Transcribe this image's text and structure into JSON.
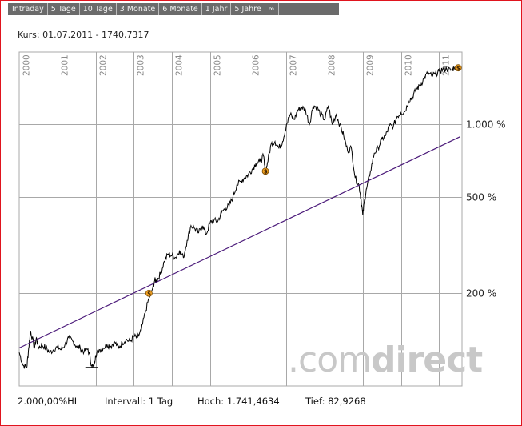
{
  "tabs": [
    "Intraday",
    "5 Tage",
    "10 Tage",
    "3 Monate",
    "6 Monate",
    "1 Jahr",
    "5 Jahre",
    "∞"
  ],
  "kurs_label": "Kurs: 01.07.2011 - 1740,7317",
  "watermark": {
    "dot": ".",
    "com": "com",
    "direct": "direct"
  },
  "footer": {
    "scale": "2.000,00%HL",
    "interval": "Intervall: 1 Tag",
    "high": "Hoch: 1.741,4634",
    "low": "Tief: 82,9268"
  },
  "colors": {
    "frame": "#e0141e",
    "tab_bg": "#6b6b6b",
    "grid": "#a8a8a8",
    "price_line": "#000000",
    "trend_line": "#4b1a7a",
    "marker": "#f0a020",
    "watermark": "#c8c8c8"
  },
  "chart_data": {
    "type": "line",
    "title": "",
    "y_scale": "log",
    "ylim": [
      82,
      2000
    ],
    "xlim": [
      2000.0,
      2011.6
    ],
    "x_ticks": [
      "2000",
      "2001",
      "2002",
      "2003",
      "2004",
      "2005",
      "2006",
      "2007",
      "2008",
      "2009",
      "2010",
      "2011"
    ],
    "y_ticks": [
      {
        "value": 1000,
        "label": "1.000 %"
      },
      {
        "value": 500,
        "label": "500 %"
      },
      {
        "value": 200,
        "label": "200 %"
      }
    ],
    "grid": true,
    "series": [
      {
        "values_x": [
          2000.0,
          2000.1,
          2000.2,
          2000.25,
          2000.3,
          2000.4,
          2000.45,
          2000.5,
          2000.6,
          2000.7,
          2000.8,
          2000.9,
          2001.0,
          2001.1,
          2001.2,
          2001.3,
          2001.4,
          2001.5,
          2001.6,
          2001.7,
          2001.8,
          2001.9,
          2001.95,
          2002.0,
          2002.1,
          2002.2,
          2002.3,
          2002.4,
          2002.5,
          2002.6,
          2002.7,
          2002.8,
          2002.9,
          2003.0,
          2003.1,
          2003.2,
          2003.3,
          2003.4,
          2003.5,
          2003.55,
          2003.6,
          2003.7,
          2003.8,
          2003.9,
          2004.0,
          2004.1,
          2004.2,
          2004.3,
          2004.4,
          2004.5,
          2004.6,
          2004.7,
          2004.8,
          2004.9,
          2005.0,
          2005.1,
          2005.2,
          2005.3,
          2005.4,
          2005.5,
          2005.6,
          2005.7,
          2005.8,
          2005.9,
          2006.0,
          2006.1,
          2006.2,
          2006.3,
          2006.4,
          2006.45,
          2006.5,
          2006.6,
          2006.7,
          2006.8,
          2006.9,
          2007.0,
          2007.1,
          2007.2,
          2007.3,
          2007.4,
          2007.5,
          2007.6,
          2007.7,
          2007.8,
          2007.9,
          2008.0,
          2008.1,
          2008.2,
          2008.3,
          2008.4,
          2008.5,
          2008.6,
          2008.7,
          2008.8,
          2008.9,
          2008.95,
          2009.0,
          2009.05,
          2009.1,
          2009.2,
          2009.3,
          2009.4,
          2009.5,
          2009.6,
          2009.7,
          2009.8,
          2009.9,
          2010.0,
          2010.1,
          2010.2,
          2010.3,
          2010.4,
          2010.5,
          2010.6,
          2010.7,
          2010.8,
          2010.9,
          2011.0,
          2011.1,
          2011.2,
          2011.3,
          2011.4,
          2011.5
        ],
        "values_y": [
          113,
          100,
          98,
          118,
          139,
          118,
          130,
          119,
          121,
          118,
          113,
          116,
          119,
          116,
          122,
          130,
          126,
          120,
          118,
          114,
          117,
          100,
          98,
          110,
          116,
          118,
          122,
          120,
          125,
          118,
          124,
          128,
          125,
          132,
          130,
          140,
          165,
          190,
          210,
          225,
          224,
          240,
          270,
          290,
          285,
          280,
          300,
          280,
          330,
          380,
          370,
          355,
          380,
          350,
          390,
          400,
          395,
          430,
          450,
          460,
          500,
          560,
          580,
          600,
          620,
          650,
          690,
          700,
          740,
          620,
          690,
          830,
          850,
          800,
          850,
          1000,
          1100,
          1050,
          1150,
          1180,
          1150,
          1000,
          1200,
          1180,
          1100,
          1050,
          1200,
          1000,
          1100,
          1000,
          900,
          780,
          800,
          600,
          560,
          500,
          420,
          490,
          540,
          640,
          760,
          800,
          870,
          900,
          990,
          980,
          1080,
          1120,
          1130,
          1250,
          1300,
          1400,
          1450,
          1550,
          1630,
          1600,
          1620,
          1660,
          1700,
          1700,
          1680,
          1720,
          1740
        ]
      },
      {
        "values_x": [
          2000.0,
          2011.55
        ],
        "values_y": [
          118,
          890
        ]
      }
    ],
    "markers": [
      {
        "x": 2003.4,
        "y": 199
      },
      {
        "x": 2006.45,
        "y": 640
      },
      {
        "x": 2011.5,
        "y": 1720
      }
    ]
  }
}
